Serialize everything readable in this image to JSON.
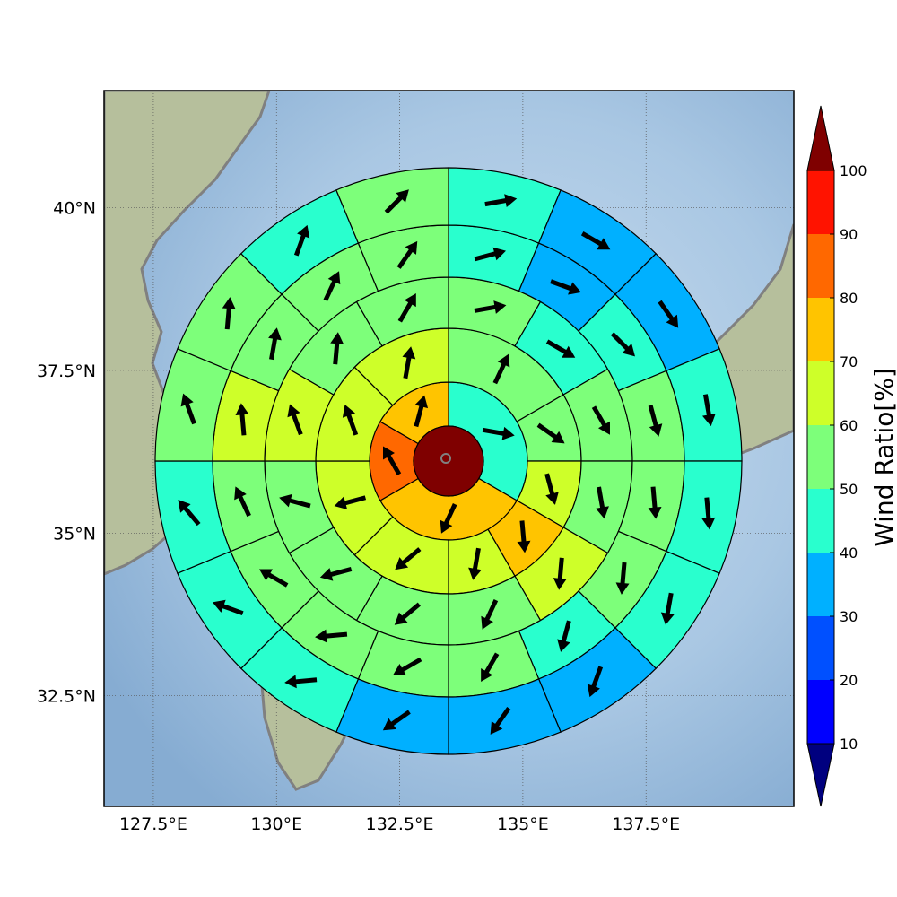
{
  "chart_data": {
    "type": "heatmap",
    "subtype": "polar-sector-grid-with-wind-vectors",
    "title": "",
    "grid": true,
    "map_extent": {
      "lon": [
        126.5,
        140.5
      ],
      "lat": [
        30.8,
        41.8
      ]
    },
    "x_ticks": [
      {
        "value": 127.5,
        "label": "127.5°E"
      },
      {
        "value": 130,
        "label": "130°E"
      },
      {
        "value": 132.5,
        "label": "132.5°E"
      },
      {
        "value": 135,
        "label": "135°E"
      },
      {
        "value": 137.5,
        "label": "137.5°E"
      }
    ],
    "y_ticks": [
      {
        "value": 40,
        "label": "40°N"
      },
      {
        "value": 37.5,
        "label": "37.5°N"
      },
      {
        "value": 35,
        "label": "35°N"
      },
      {
        "value": 32.5,
        "label": "32.5°N"
      }
    ],
    "center_cell": {
      "value": 100
    },
    "sectors_note": "bearing in degrees clockwise from north; direction = bearing the arrow points to",
    "rings": [
      {
        "ring": 1,
        "cells": [
          {
            "from": 0,
            "to": 120,
            "value": 45,
            "direction": 100
          },
          {
            "from": 120,
            "to": 240,
            "value": 75,
            "direction": 205
          },
          {
            "from": 240,
            "to": 300,
            "value": 85,
            "direction": 330
          },
          {
            "from": 300,
            "to": 360,
            "value": 75,
            "direction": 15
          }
        ]
      },
      {
        "ring": 2,
        "cells": [
          {
            "from": 0,
            "to": 60,
            "value": 55,
            "direction": 25
          },
          {
            "from": 60,
            "to": 90,
            "value": 55,
            "direction": 125
          },
          {
            "from": 90,
            "to": 120,
            "value": 65,
            "direction": 165
          },
          {
            "from": 120,
            "to": 150,
            "value": 75,
            "direction": 175
          },
          {
            "from": 150,
            "to": 180,
            "value": 65,
            "direction": 190
          },
          {
            "from": 180,
            "to": 225,
            "value": 65,
            "direction": 230
          },
          {
            "from": 225,
            "to": 270,
            "value": 65,
            "direction": 255
          },
          {
            "from": 270,
            "to": 315,
            "value": 65,
            "direction": 340
          },
          {
            "from": 315,
            "to": 360,
            "value": 65,
            "direction": 10
          }
        ]
      },
      {
        "ring": 3,
        "cells": [
          {
            "from": 0,
            "to": 30,
            "value": 55,
            "direction": 80
          },
          {
            "from": 30,
            "to": 60,
            "value": 45,
            "direction": 120
          },
          {
            "from": 60,
            "to": 90,
            "value": 55,
            "direction": 150
          },
          {
            "from": 90,
            "to": 120,
            "value": 55,
            "direction": 170
          },
          {
            "from": 120,
            "to": 150,
            "value": 65,
            "direction": 185
          },
          {
            "from": 150,
            "to": 180,
            "value": 55,
            "direction": 205
          },
          {
            "from": 180,
            "to": 210,
            "value": 55,
            "direction": 230
          },
          {
            "from": 210,
            "to": 240,
            "value": 55,
            "direction": 255
          },
          {
            "from": 240,
            "to": 270,
            "value": 55,
            "direction": 285
          },
          {
            "from": 270,
            "to": 300,
            "value": 65,
            "direction": 340
          },
          {
            "from": 300,
            "to": 330,
            "value": 55,
            "direction": 5
          },
          {
            "from": 330,
            "to": 360,
            "value": 55,
            "direction": 30
          }
        ]
      },
      {
        "ring": 4,
        "cells": [
          {
            "from": 0,
            "to": 22.5,
            "value": 45,
            "direction": 75
          },
          {
            "from": 22.5,
            "to": 45,
            "value": 35,
            "direction": 110
          },
          {
            "from": 45,
            "to": 67.5,
            "value": 45,
            "direction": 135
          },
          {
            "from": 67.5,
            "to": 90,
            "value": 55,
            "direction": 165
          },
          {
            "from": 90,
            "to": 112.5,
            "value": 55,
            "direction": 175
          },
          {
            "from": 112.5,
            "to": 135,
            "value": 55,
            "direction": 185
          },
          {
            "from": 135,
            "to": 157.5,
            "value": 45,
            "direction": 195
          },
          {
            "from": 157.5,
            "to": 180,
            "value": 55,
            "direction": 210
          },
          {
            "from": 180,
            "to": 202.5,
            "value": 55,
            "direction": 240
          },
          {
            "from": 202.5,
            "to": 225,
            "value": 55,
            "direction": 265
          },
          {
            "from": 225,
            "to": 247.5,
            "value": 55,
            "direction": 300
          },
          {
            "from": 247.5,
            "to": 270,
            "value": 55,
            "direction": 335
          },
          {
            "from": 270,
            "to": 292.5,
            "value": 65,
            "direction": 355
          },
          {
            "from": 292.5,
            "to": 315,
            "value": 55,
            "direction": 10
          },
          {
            "from": 315,
            "to": 337.5,
            "value": 55,
            "direction": 25
          },
          {
            "from": 337.5,
            "to": 360,
            "value": 55,
            "direction": 35
          }
        ]
      },
      {
        "ring": 5,
        "cells": [
          {
            "from": 0,
            "to": 22.5,
            "value": 45,
            "direction": 80
          },
          {
            "from": 22.5,
            "to": 45,
            "value": 35,
            "direction": 120
          },
          {
            "from": 45,
            "to": 67.5,
            "value": 35,
            "direction": 145
          },
          {
            "from": 67.5,
            "to": 90,
            "value": 45,
            "direction": 170
          },
          {
            "from": 90,
            "to": 112.5,
            "value": 45,
            "direction": 175
          },
          {
            "from": 112.5,
            "to": 135,
            "value": 45,
            "direction": 190
          },
          {
            "from": 135,
            "to": 157.5,
            "value": 35,
            "direction": 200
          },
          {
            "from": 157.5,
            "to": 180,
            "value": 35,
            "direction": 215
          },
          {
            "from": 180,
            "to": 202.5,
            "value": 35,
            "direction": 235
          },
          {
            "from": 202.5,
            "to": 225,
            "value": 45,
            "direction": 265
          },
          {
            "from": 225,
            "to": 247.5,
            "value": 45,
            "direction": 290
          },
          {
            "from": 247.5,
            "to": 270,
            "value": 45,
            "direction": 320
          },
          {
            "from": 270,
            "to": 292.5,
            "value": 55,
            "direction": 340
          },
          {
            "from": 292.5,
            "to": 315,
            "value": 55,
            "direction": 5
          },
          {
            "from": 315,
            "to": 337.5,
            "value": 45,
            "direction": 20
          },
          {
            "from": 337.5,
            "to": 360,
            "value": 55,
            "direction": 45
          }
        ]
      }
    ],
    "colorbar": {
      "title": "Wind Ratio[%]",
      "ticks": [
        10,
        20,
        30,
        40,
        50,
        60,
        70,
        80,
        90,
        100
      ],
      "levels": [
        {
          "from": 0,
          "to": 10,
          "color": "#00007f"
        },
        {
          "from": 10,
          "to": 20,
          "color": "#0000ff"
        },
        {
          "from": 20,
          "to": 30,
          "color": "#0050ff"
        },
        {
          "from": 30,
          "to": 40,
          "color": "#00b0ff"
        },
        {
          "from": 40,
          "to": 50,
          "color": "#29ffce"
        },
        {
          "from": 50,
          "to": 60,
          "color": "#7dff7a"
        },
        {
          "from": 60,
          "to": 70,
          "color": "#ceff29"
        },
        {
          "from": 70,
          "to": 80,
          "color": "#ffc400"
        },
        {
          "from": 80,
          "to": 90,
          "color": "#ff6800"
        },
        {
          "from": 90,
          "to": 100,
          "color": "#ff1300"
        },
        {
          "from": 100,
          "to": 110,
          "color": "#7f0000"
        }
      ]
    },
    "colors": {
      "sea": "#a9c8e4",
      "land": "#b9c3a0",
      "coastline": "#808080"
    }
  }
}
